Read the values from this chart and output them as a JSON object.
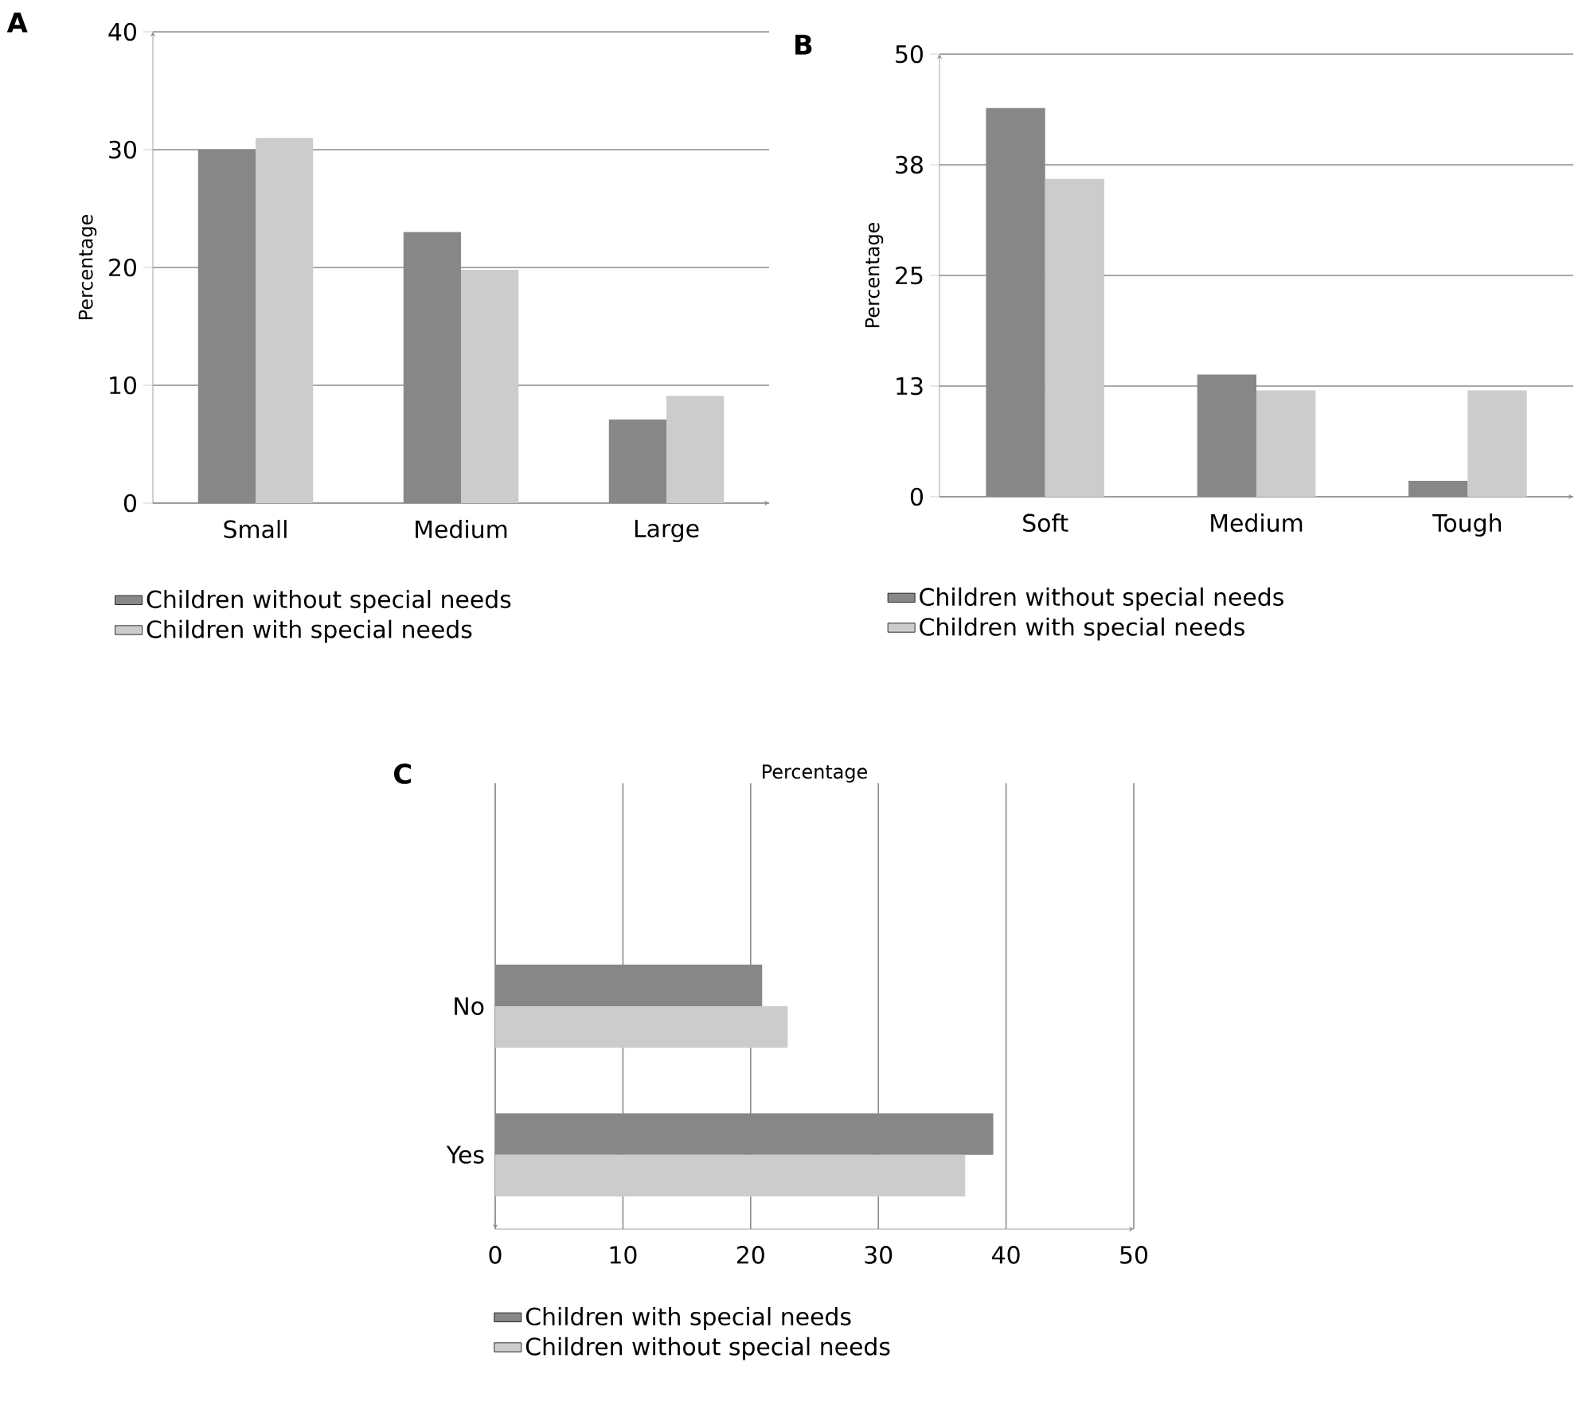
{
  "chart_data": [
    {
      "type": "bar",
      "title": "A",
      "ylabel": "Percentage",
      "categories": [
        "Small",
        "Medium",
        "Large"
      ],
      "series": [
        {
          "name": "Children without special needs",
          "color": "#878787",
          "values": [
            30,
            23,
            7.1
          ]
        },
        {
          "name": "Children with special needs",
          "color": "#cccccc",
          "values": [
            31,
            19.8,
            9.1
          ]
        }
      ],
      "ylim": [
        0,
        40
      ],
      "yticks": [
        0,
        10,
        20,
        30,
        40
      ],
      "grid": "y",
      "legend": "bottom"
    },
    {
      "type": "bar",
      "title": "B",
      "ylabel": "Percentage",
      "categories": [
        "Soft",
        "Medium",
        "Tough"
      ],
      "series": [
        {
          "name": "Children without special needs",
          "color": "#878787",
          "values": [
            43.9,
            13.8,
            1.8
          ]
        },
        {
          "name": "Children with special needs",
          "color": "#cccccc",
          "values": [
            35.9,
            12,
            12
          ]
        }
      ],
      "ylim": [
        0,
        50
      ],
      "yticks": [
        0,
        {
          "value": 12.5,
          "label": "13"
        },
        25,
        {
          "value": 37.5,
          "label": "38"
        },
        50
      ],
      "grid": "y",
      "legend": "bottom"
    },
    {
      "type": "bar",
      "orientation": "horizontal",
      "title": "C",
      "xlabel": "Percentage",
      "categories": [
        null,
        "No",
        "Yes"
      ],
      "series": [
        {
          "name": "Children with special needs",
          "color": "#878787",
          "values": [
            null,
            20.9,
            39.0
          ]
        },
        {
          "name": "Children without special needs",
          "color": "#cccccc",
          "values": [
            null,
            22.9,
            36.8
          ]
        }
      ],
      "xlim": [
        0,
        50
      ],
      "xticks": [
        0,
        10,
        20,
        30,
        40,
        50
      ],
      "grid": "x",
      "legend": "bottom"
    }
  ]
}
